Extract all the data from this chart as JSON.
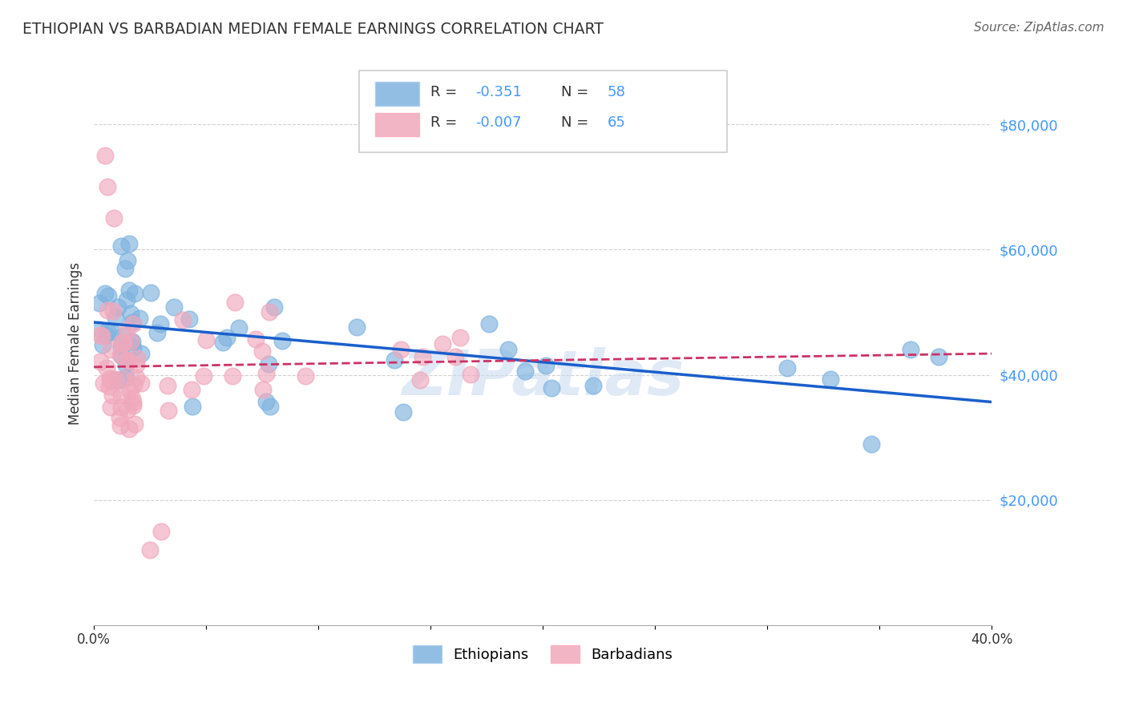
{
  "title": "ETHIOPIAN VS BARBADIAN MEDIAN FEMALE EARNINGS CORRELATION CHART",
  "source": "Source: ZipAtlas.com",
  "ylabel": "Median Female Earnings",
  "xlim": [
    0.0,
    0.4
  ],
  "ylim": [
    0,
    90000
  ],
  "yticks": [
    20000,
    40000,
    60000,
    80000
  ],
  "ytick_labels": [
    "$20,000",
    "$40,000",
    "$60,000",
    "$80,000"
  ],
  "legend_r_ethiopian": "-0.351",
  "legend_n_ethiopian": "58",
  "legend_r_barbadian": "-0.007",
  "legend_n_barbadian": "65",
  "ethiopian_color": "#7fb3e0",
  "barbadian_color": "#f0a8bc",
  "trendline_ethiopian_color": "#1a5fcc",
  "trendline_barbadian_color": "#cc3366",
  "watermark": "ZIPatlas",
  "background_color": "#ffffff",
  "grid_color": "#cccccc",
  "title_color": "#333333",
  "ytick_color": "#4499ff",
  "source_color": "#666666"
}
